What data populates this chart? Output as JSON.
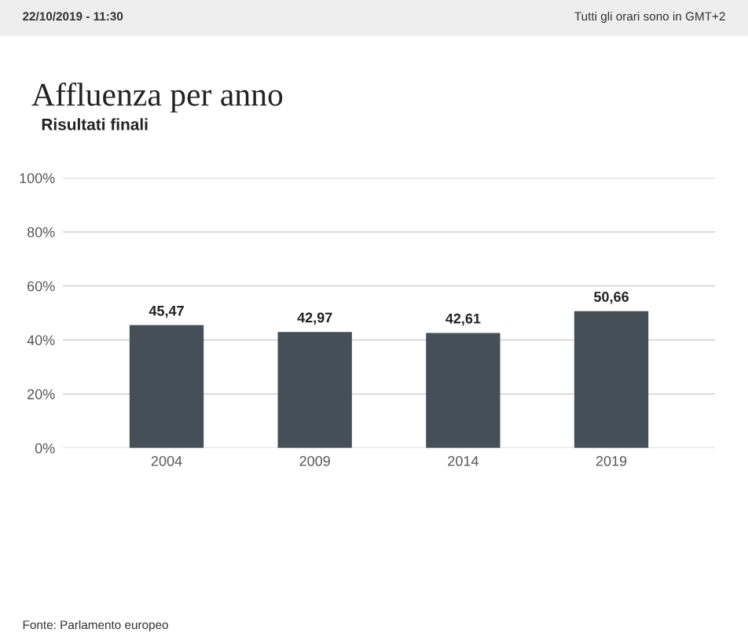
{
  "chart_data": {
    "type": "bar",
    "title": "Affluenza per anno",
    "subtitle": "Risultati finali",
    "categories": [
      "2004",
      "2009",
      "2014",
      "2019"
    ],
    "values": [
      45.47,
      42.97,
      42.61,
      50.66
    ],
    "value_labels": [
      "45,47",
      "42,97",
      "42,61",
      "50,66"
    ],
    "color": "#444f57",
    "ylim": [
      0,
      100
    ],
    "yticks": [
      {
        "value": 0,
        "label": "0%"
      },
      {
        "value": 20,
        "label": "20%"
      },
      {
        "value": 40,
        "label": "40%"
      },
      {
        "value": 60,
        "label": "60%"
      },
      {
        "value": 80,
        "label": "80%"
      },
      {
        "value": 100,
        "label": "100%"
      }
    ],
    "grid": "y",
    "annotations": [
      "22/10/2019 - 11:30",
      "Tutti gli orari sono in GMT+2",
      "Fonte: Parlamento europeo"
    ]
  }
}
